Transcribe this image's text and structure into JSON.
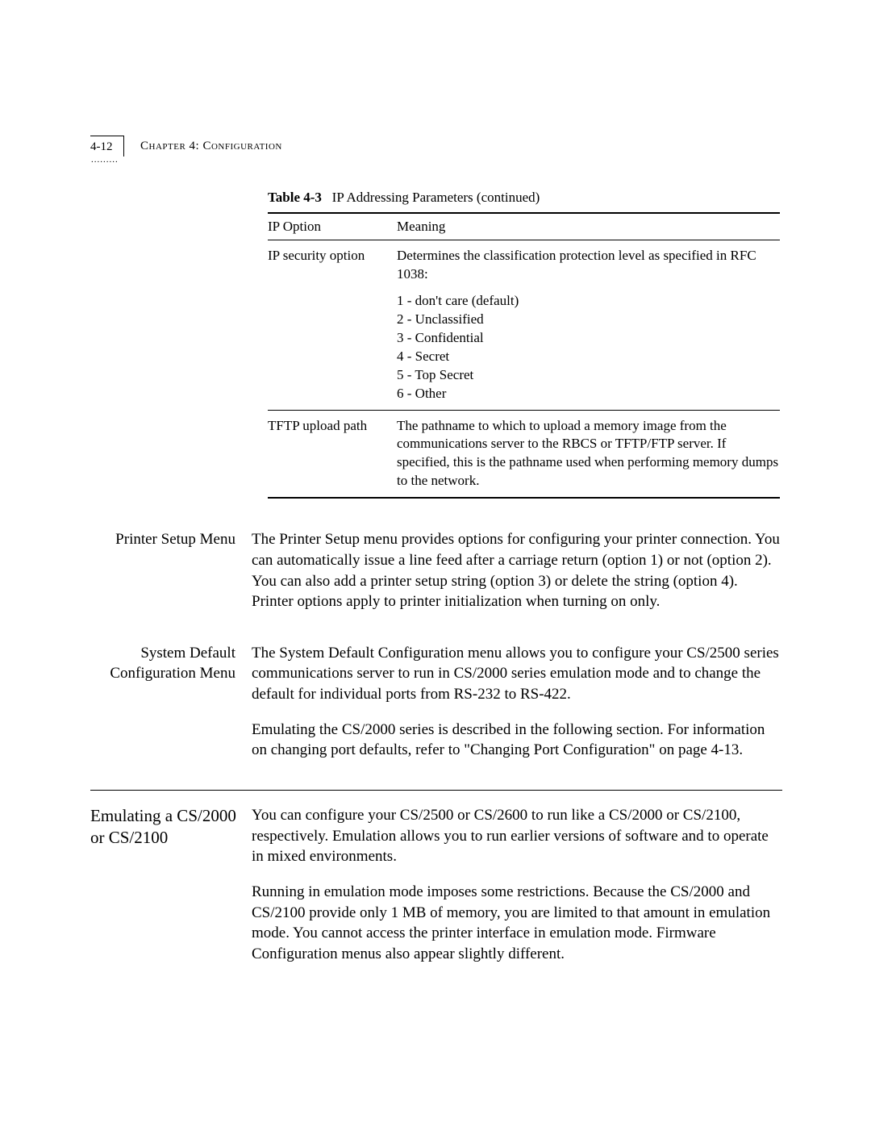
{
  "header": {
    "page_number": "4-12",
    "chapter_title": "Chapter 4: Configuration",
    "dots": "........."
  },
  "table": {
    "caption_bold": "Table 4-3",
    "caption_text": "IP Addressing Parameters (continued)",
    "col1_header": "IP Option",
    "col2_header": "Meaning",
    "rows": [
      {
        "option": "IP security option",
        "meaning_intro": "Determines the classification protection level as specified in RFC 1038:",
        "list": [
          "1 - don't care (default)",
          "2 - Unclassified",
          "3 - Confidential",
          "4 - Secret",
          "5 - Top Secret",
          "6 - Other"
        ]
      },
      {
        "option": "TFTP upload path",
        "meaning": "The pathname to which to upload a memory image from the communications server to the RBCS or TFTP/FTP server. If specified, this is the pathname used when performing memory dumps to the network."
      }
    ]
  },
  "sections": {
    "printer": {
      "label": "Printer Setup Menu",
      "body": "The Printer Setup menu provides options for configuring your printer connection. You can automatically issue a line feed after a carriage return (option 1) or not (option 2). You can also add a printer setup string (option 3) or delete the string (option 4). Printer options apply to printer initialization when turning on only."
    },
    "sysdefault": {
      "label": "System Default Configuration Menu",
      "para1": "The System Default Configuration menu allows you to configure your CS/2500 series communications server to run in CS/2000 series emulation mode and to change the default for individual ports from RS-232 to RS-422.",
      "para2": "Emulating the CS/2000 series is described in the following section. For information on changing port defaults, refer to \"Changing Port Configuration\" on page 4-13."
    },
    "emulating": {
      "label": "Emulating a CS/2000 or CS/2100",
      "para1": "You can configure your CS/2500 or CS/2600 to run like a CS/2000 or CS/2100, respectively. Emulation allows you to run earlier versions of software and to operate in mixed environments.",
      "para2": "Running in emulation mode imposes some restrictions. Because the CS/2000 and CS/2100 provide only 1 MB of memory, you are limited to that amount in emulation mode. You cannot access the printer interface in emulation mode. Firmware Configuration menus also appear slightly different."
    }
  }
}
